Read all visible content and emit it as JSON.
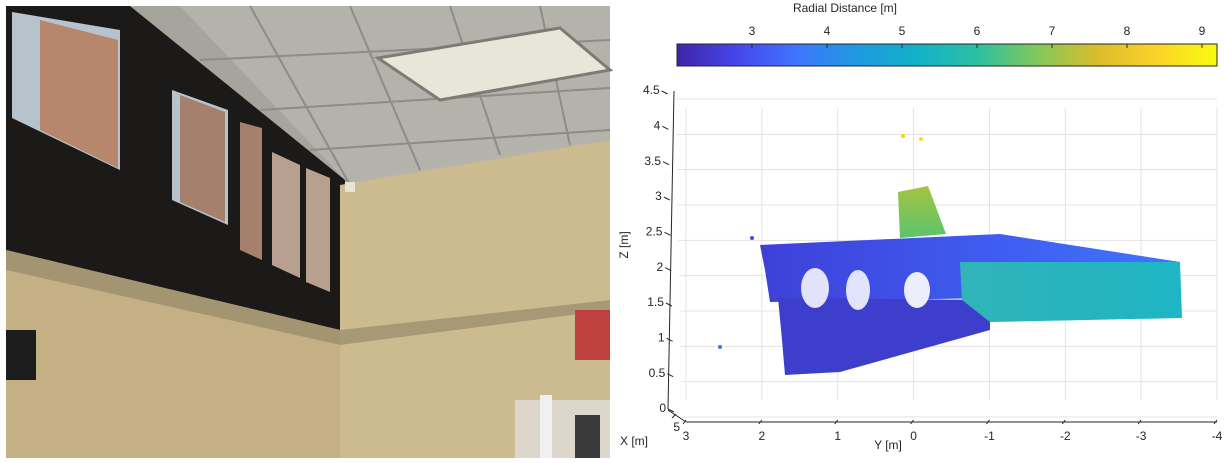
{
  "chart_data": {
    "type": "scatter3d",
    "colorbar": {
      "label": "Radial Distance [m]",
      "lim": [
        2,
        9.2
      ],
      "ticks": [
        3,
        4,
        5,
        6,
        7,
        8,
        9
      ],
      "colormap": [
        "#3e26a8",
        "#4746eb",
        "#3f75fe",
        "#1e9ae0",
        "#12b1c9",
        "#2bc0a3",
        "#81c85a",
        "#dbbc2c",
        "#fbd429",
        "#f9fb0e"
      ]
    },
    "xlabel": "X [m]",
    "ylabel": "Y [m]",
    "zlabel": "Z [m]",
    "xticks": [
      5
    ],
    "ylim": [
      3,
      -4
    ],
    "yticks": [
      3,
      2,
      1,
      0,
      -1,
      -2,
      -3,
      -4
    ],
    "zlim": [
      0,
      4.5
    ],
    "zticks": [
      0,
      0.5,
      1,
      1.5,
      2,
      2.5,
      3,
      3.5,
      4,
      4.5
    ],
    "grid": true
  }
}
